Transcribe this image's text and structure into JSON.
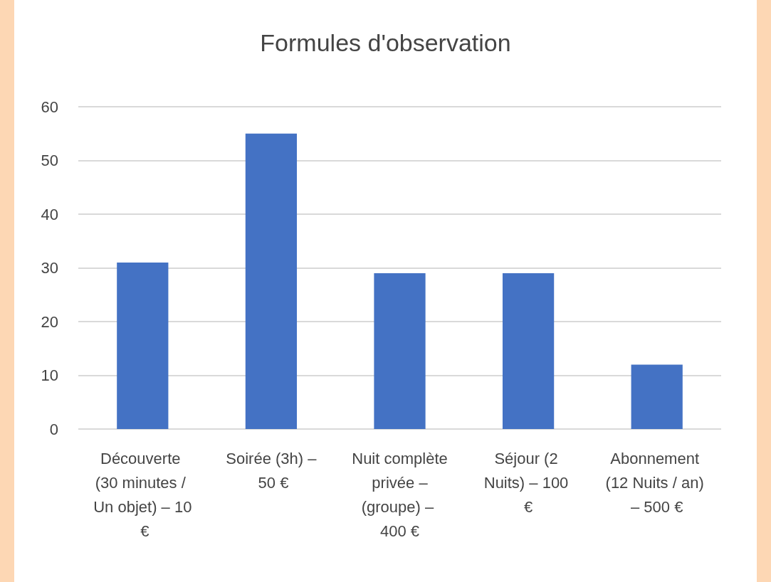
{
  "chart_data": {
    "type": "bar",
    "title": "Formules d'observation",
    "categories": [
      "Découverte (30 minutes / Un objet) – 10 €",
      "Soirée (3h) – 50 €",
      "Nuit complète privée – (groupe) – 400 €",
      "Séjour (2 Nuits) – 100 €",
      "Abonnement (12 Nuits / an) – 500 €"
    ],
    "values": [
      31,
      55,
      29,
      29,
      12
    ],
    "color": "#4472c4",
    "ylim": [
      0,
      60
    ],
    "yticks": [
      0,
      10,
      20,
      30,
      40,
      50,
      60
    ],
    "grid": "y"
  }
}
